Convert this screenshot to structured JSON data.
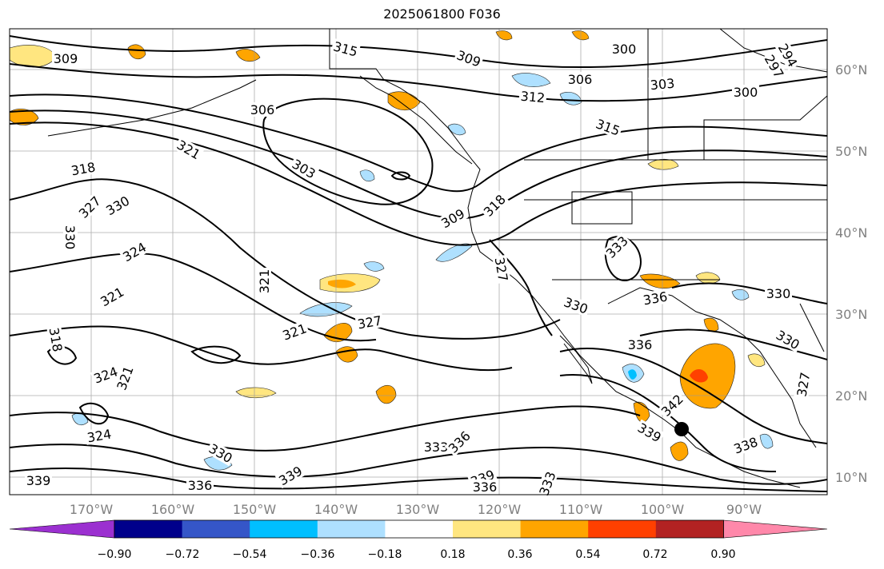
{
  "title": "2025061800 F036",
  "lat_labels": [
    "60°N",
    "50°N",
    "40°N",
    "30°N",
    "20°N",
    "10°N"
  ],
  "lon_labels": [
    "170°W",
    "160°W",
    "150°W",
    "140°W",
    "130°W",
    "120°W",
    "110°W",
    "100°W",
    "90°W"
  ],
  "colorbar": {
    "ticks": [
      "−0.90",
      "−0.72",
      "−0.54",
      "−0.36",
      "−0.18",
      "0.18",
      "0.36",
      "0.54",
      "0.72",
      "0.90"
    ],
    "colors": [
      "#9b30d0",
      "#00008b",
      "#3556c8",
      "#00bfff",
      "#aee0ff",
      "#ffffff",
      "#ffe680",
      "#ffa500",
      "#ff4000",
      "#b22222",
      "#ff88aa"
    ]
  },
  "contour_labels": [
    "309",
    "315",
    "300",
    "309",
    "306",
    "303",
    "312",
    "300",
    "294",
    "297",
    "306",
    "315",
    "321",
    "303",
    "318",
    "327",
    "330",
    "330",
    "324",
    "309",
    "318",
    "321",
    "321",
    "327",
    "318",
    "321",
    "327",
    "330",
    "333",
    "336",
    "330",
    "336",
    "330",
    "324",
    "321",
    "342",
    "327",
    "339",
    "324",
    "333",
    "336",
    "339",
    "338",
    "339",
    "336",
    "339",
    "333",
    "336",
    "330"
  ],
  "marker": {
    "lat": 16,
    "lon": -98
  }
}
